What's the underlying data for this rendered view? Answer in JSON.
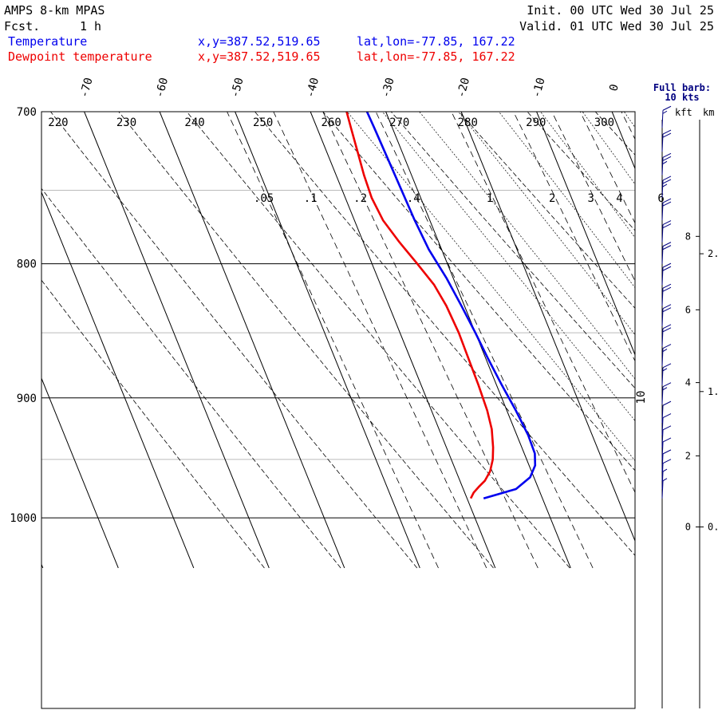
{
  "header": {
    "model": "AMPS 8-km MPAS",
    "fcst_label": "Fcst.",
    "fcst_value": "1 h",
    "init": "Init. 00 UTC Wed 30 Jul 25",
    "valid": "Valid. 01 UTC Wed 30 Jul 25"
  },
  "legend": [
    {
      "name": "Temperature",
      "xy": "x,y=387.52,519.65",
      "latlon": "lat,lon=-77.85, 167.22",
      "color": "#0000ee"
    },
    {
      "name": "Dewpoint temperature",
      "xy": "x,y=387.52,519.65",
      "latlon": "lat,lon=-77.85, 167.22",
      "color": "#ee0000"
    }
  ],
  "wind_panel": {
    "title_line1": "Full barb:",
    "title_line2": "10 kts",
    "kft_label": "kft",
    "km_label": "km"
  },
  "chart_data": {
    "type": "line",
    "subtype": "skew-T log-P diagram",
    "y_axis": {
      "quantity": "pressure (hPa)",
      "scale": "log",
      "range": [
        1045,
        700
      ],
      "ticks": [
        700,
        800,
        900,
        1000
      ]
    },
    "temperature_ticks_C": [
      "-70",
      "-60",
      "-50",
      "-40",
      "-30",
      "-20",
      "-10",
      "0"
    ],
    "dry_adiabat_labels_K": [
      "220",
      "230",
      "240",
      "250",
      "260",
      "270",
      "280",
      "290",
      "300"
    ],
    "mixing_ratio_labels_gkg": [
      ".05",
      ".1",
      ".2",
      ".4",
      "1",
      "2",
      "3",
      "4",
      "6"
    ],
    "moist_adiabat_label": "10",
    "series": [
      {
        "name": "Temperature",
        "color": "#0000ee",
        "points": [
          [
            983,
            -37.8
          ],
          [
            975,
            -33.0
          ],
          [
            965,
            -30.5
          ],
          [
            955,
            -29.2
          ],
          [
            945,
            -28.6
          ],
          [
            930,
            -28.5
          ],
          [
            910,
            -28.8
          ],
          [
            890,
            -29.3
          ],
          [
            870,
            -29.7
          ],
          [
            850,
            -30.0
          ],
          [
            830,
            -30.4
          ],
          [
            810,
            -30.9
          ],
          [
            800,
            -31.3
          ],
          [
            790,
            -31.7
          ],
          [
            770,
            -32.0
          ],
          [
            740,
            -32.2
          ],
          [
            710,
            -32.4
          ],
          [
            700,
            -32.5
          ]
        ]
      },
      {
        "name": "Dewpoint temperature",
        "color": "#ee0000",
        "points": [
          [
            983,
            -39.5
          ],
          [
            978,
            -38.8
          ],
          [
            973,
            -37.8
          ],
          [
            968,
            -36.7
          ],
          [
            960,
            -35.5
          ],
          [
            950,
            -34.5
          ],
          [
            940,
            -33.8
          ],
          [
            925,
            -33.0
          ],
          [
            910,
            -32.6
          ],
          [
            890,
            -32.4
          ],
          [
            870,
            -32.3
          ],
          [
            850,
            -32.2
          ],
          [
            830,
            -32.4
          ],
          [
            815,
            -32.9
          ],
          [
            800,
            -34.0
          ],
          [
            785,
            -35.2
          ],
          [
            770,
            -36.2
          ],
          [
            755,
            -36.5
          ],
          [
            740,
            -36.3
          ],
          [
            725,
            -35.9
          ],
          [
            710,
            -35.5
          ],
          [
            700,
            -35.2
          ]
        ]
      }
    ],
    "wind_profile_kt": [
      {
        "p": 983,
        "spd": 8
      },
      {
        "p": 975,
        "spd": 8
      },
      {
        "p": 968,
        "spd": 10
      },
      {
        "p": 960,
        "spd": 10
      },
      {
        "p": 950,
        "spd": 10
      },
      {
        "p": 940,
        "spd": 10
      },
      {
        "p": 930,
        "spd": 10
      },
      {
        "p": 920,
        "spd": 10
      },
      {
        "p": 905,
        "spd": 15
      },
      {
        "p": 890,
        "spd": 15
      },
      {
        "p": 875,
        "spd": 15
      },
      {
        "p": 860,
        "spd": 20
      },
      {
        "p": 845,
        "spd": 20
      },
      {
        "p": 830,
        "spd": 20
      },
      {
        "p": 815,
        "spd": 20
      },
      {
        "p": 800,
        "spd": 20
      },
      {
        "p": 785,
        "spd": 20
      },
      {
        "p": 770,
        "spd": 20
      },
      {
        "p": 755,
        "spd": 25
      },
      {
        "p": 740,
        "spd": 25
      },
      {
        "p": 725,
        "spd": 20
      },
      {
        "p": 710,
        "spd": 15
      }
    ],
    "height_axis": {
      "kft_ticks": [
        "0",
        "2",
        "4",
        "6",
        "8"
      ],
      "km_ticks": [
        "0.",
        "1.",
        "2."
      ]
    }
  }
}
